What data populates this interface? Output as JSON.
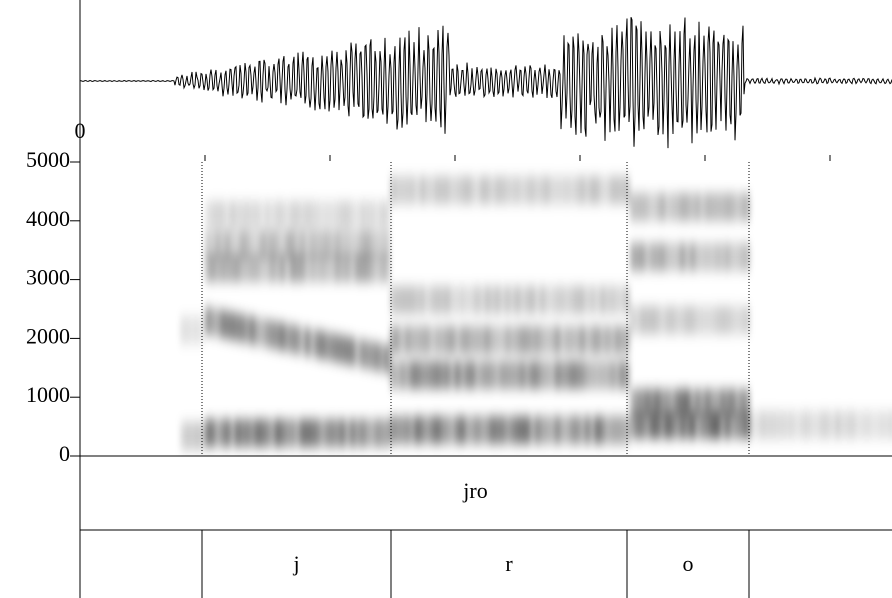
{
  "chart_data": {
    "type": "spectrogram",
    "annotations": [
      "0"
    ],
    "ylim": [
      0,
      5000
    ],
    "yticks": [
      0,
      1000,
      2000,
      3000,
      4000,
      5000
    ],
    "tiers": [
      {
        "intervals": [
          "jro"
        ]
      },
      {
        "intervals": [
          "j",
          "r",
          "o"
        ]
      }
    ]
  }
}
